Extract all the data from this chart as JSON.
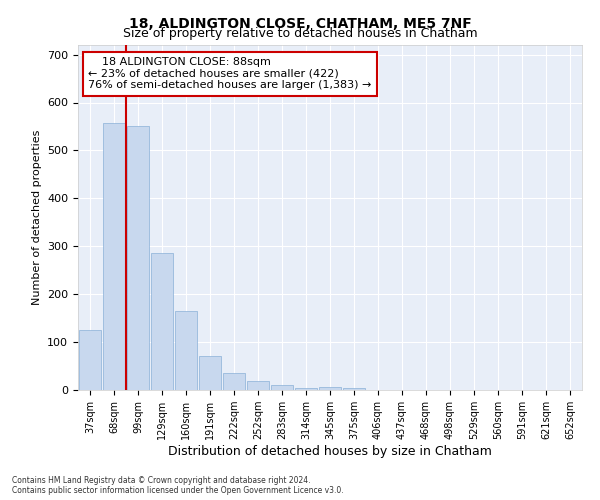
{
  "title": "18, ALDINGTON CLOSE, CHATHAM, ME5 7NF",
  "subtitle": "Size of property relative to detached houses in Chatham",
  "xlabel": "Distribution of detached houses by size in Chatham",
  "ylabel": "Number of detached properties",
  "bar_color": "#c8d8ee",
  "bar_edge_color": "#8ab0d8",
  "background_color": "#e8eef8",
  "grid_color": "#ffffff",
  "categories": [
    "37sqm",
    "68sqm",
    "99sqm",
    "129sqm",
    "160sqm",
    "191sqm",
    "222sqm",
    "252sqm",
    "283sqm",
    "314sqm",
    "345sqm",
    "375sqm",
    "406sqm",
    "437sqm",
    "468sqm",
    "498sqm",
    "529sqm",
    "560sqm",
    "591sqm",
    "621sqm",
    "652sqm"
  ],
  "values": [
    125,
    557,
    552,
    285,
    165,
    70,
    35,
    19,
    10,
    5,
    7,
    5,
    1,
    0,
    0,
    0,
    0,
    0,
    0,
    0,
    0
  ],
  "red_line_x": 1.5,
  "annotation_line1": "    18 ALDINGTON CLOSE: 88sqm",
  "annotation_line2": "← 23% of detached houses are smaller (422)",
  "annotation_line3": "76% of semi-detached houses are larger (1,383) →",
  "annotation_box_color": "#ffffff",
  "annotation_box_edge_color": "#cc0000",
  "red_line_color": "#cc0000",
  "footer_line1": "Contains HM Land Registry data © Crown copyright and database right 2024.",
  "footer_line2": "Contains public sector information licensed under the Open Government Licence v3.0.",
  "ylim": [
    0,
    720
  ],
  "yticks": [
    0,
    100,
    200,
    300,
    400,
    500,
    600,
    700
  ]
}
